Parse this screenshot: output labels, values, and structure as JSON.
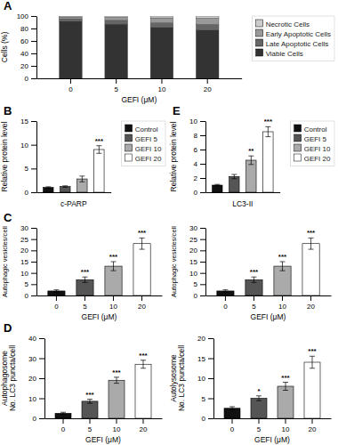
{
  "chart_data": [
    {
      "type": "bar",
      "title": "A",
      "stacked": true,
      "categories": [
        "0",
        "5",
        "10",
        "20"
      ],
      "series": [
        {
          "name": "Viable Cells",
          "color": "#333333",
          "values": [
            91.5,
            87.0,
            82.0,
            77.5
          ]
        },
        {
          "name": "Late Apoptotic Cells",
          "color": "#666666",
          "values": [
            4.0,
            6.0,
            7.0,
            9.0
          ]
        },
        {
          "name": "Early Apoptotic Cells",
          "color": "#999999",
          "values": [
            3.0,
            5.0,
            8.0,
            10.0
          ]
        },
        {
          "name": "Necrotic Cells",
          "color": "#cccccc",
          "values": [
            1.5,
            2.0,
            3.0,
            3.5
          ]
        }
      ],
      "xlabel": "GEFI (μM)",
      "ylabel": "Cells (%)",
      "ylim": [
        0,
        100
      ],
      "yticks": [
        0,
        20,
        40,
        60,
        80,
        100
      ],
      "legend": "right"
    },
    {
      "type": "bar",
      "title": "B",
      "categories": [
        "Control",
        "GEFI 5",
        "GEFI 10",
        "GEFI 20"
      ],
      "values": [
        1.0,
        1.2,
        2.8,
        9.0
      ],
      "errors": [
        0.15,
        0.15,
        0.6,
        0.8
      ],
      "colors": [
        "#111111",
        "#555555",
        "#aaaaaa",
        "#ffffff"
      ],
      "xlabel": "c-PARP",
      "ylabel": "Relative protein level",
      "ylim": [
        0,
        15
      ],
      "yticks": [
        0,
        5,
        10,
        15
      ],
      "annotations": [
        null,
        null,
        null,
        "***"
      ],
      "legend": "right",
      "tick_labels": "y"
    },
    {
      "type": "bar",
      "title": "C",
      "categories": [
        "0",
        "5",
        "10",
        "20"
      ],
      "values": [
        2.0,
        7.0,
        13.0,
        23.0
      ],
      "errors": [
        0.5,
        1.2,
        2.0,
        2.5
      ],
      "colors": [
        "#111111",
        "#555555",
        "#aaaaaa",
        "#ffffff"
      ],
      "xlabel": "GEFI (μM)",
      "ylabel": "Autophagic vesicles/cell",
      "ylim": [
        0,
        30
      ],
      "yticks": [
        0,
        5,
        10,
        15,
        20,
        25,
        30
      ],
      "annotations": [
        null,
        "***",
        "***",
        "***"
      ]
    },
    {
      "type": "bar",
      "categories": [
        "0",
        "5",
        "10",
        "20"
      ],
      "values": [
        2.0,
        7.0,
        13.0,
        23.0
      ],
      "errors": [
        0.5,
        1.2,
        2.0,
        2.5
      ],
      "colors": [
        "#111111",
        "#555555",
        "#aaaaaa",
        "#ffffff"
      ],
      "xlabel": "GEFI (μM)",
      "ylabel": "Autophagic vesicles/cell",
      "ylim": [
        0,
        30
      ],
      "yticks": [
        0,
        5,
        10,
        15,
        20,
        25,
        30
      ],
      "annotations": [
        null,
        "***",
        "***",
        "***"
      ]
    },
    {
      "type": "bar",
      "title": "D",
      "categories": [
        "0",
        "5",
        "10",
        "20"
      ],
      "values": [
        2.5,
        8.5,
        19.0,
        27.0
      ],
      "errors": [
        0.5,
        1.0,
        1.5,
        2.0
      ],
      "colors": [
        "#111111",
        "#555555",
        "#aaaaaa",
        "#ffffff"
      ],
      "xlabel": "GEFI (μM)",
      "ylabel": "Autophagosome\nNo. LC3 puncta/cell",
      "ylim": [
        0,
        40
      ],
      "yticks": [
        0,
        10,
        20,
        30,
        40
      ],
      "annotations": [
        null,
        "***",
        "***",
        "***"
      ]
    },
    {
      "type": "bar",
      "categories": [
        "0",
        "5",
        "10",
        "20"
      ],
      "values": [
        2.5,
        5.0,
        8.0,
        14.0
      ],
      "errors": [
        0.4,
        0.6,
        1.0,
        1.5
      ],
      "colors": [
        "#111111",
        "#555555",
        "#aaaaaa",
        "#ffffff"
      ],
      "xlabel": "GEFI (μM)",
      "ylabel": "Autolysosome\nNo. LC3 puncta/cell",
      "ylim": [
        0,
        20
      ],
      "yticks": [
        0,
        5,
        10,
        15,
        20
      ],
      "annotations": [
        null,
        "*",
        "***",
        "***"
      ]
    },
    {
      "type": "bar",
      "title": "E",
      "categories": [
        "Control",
        "GEFI 5",
        "GEFI 10",
        "GEFI 20"
      ],
      "values": [
        1.0,
        2.2,
        4.5,
        8.5
      ],
      "errors": [
        0.1,
        0.3,
        0.6,
        0.7
      ],
      "colors": [
        "#111111",
        "#555555",
        "#aaaaaa",
        "#ffffff"
      ],
      "xlabel": "LC3-II",
      "ylabel": "Relative protein level",
      "ylim": [
        0,
        10
      ],
      "yticks": [
        0,
        2,
        4,
        6,
        8,
        10
      ],
      "annotations": [
        null,
        null,
        "**",
        "***"
      ],
      "legend": "right",
      "tick_labels": "y"
    }
  ]
}
